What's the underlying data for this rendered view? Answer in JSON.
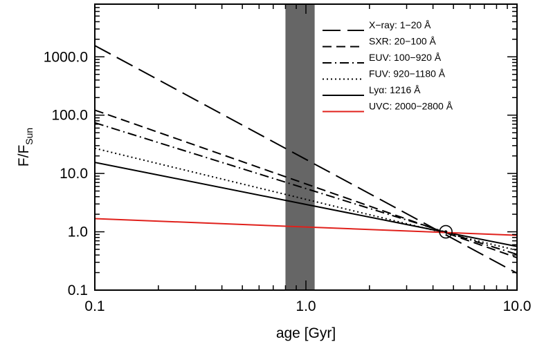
{
  "chart_data": {
    "type": "line",
    "xlabel": "age [Gyr]",
    "ylabel_main": "F/F",
    "ylabel_sub": "Sun",
    "x_scale": "log",
    "y_scale": "log",
    "xlim": [
      0.1,
      10.0
    ],
    "ylim": [
      0.1,
      8000
    ],
    "x_ticks": [
      {
        "value": 0.1,
        "label": "0.1"
      },
      {
        "value": 1.0,
        "label": "1.0"
      },
      {
        "value": 10.0,
        "label": "10.0"
      }
    ],
    "y_ticks": [
      {
        "value": 0.1,
        "label": "0.1"
      },
      {
        "value": 1.0,
        "label": "1.0"
      },
      {
        "value": 10.0,
        "label": "10.0"
      },
      {
        "value": 100.0,
        "label": "100.0"
      },
      {
        "value": 1000.0,
        "label": "1000.0"
      }
    ],
    "shaded_band": {
      "x": [
        0.8,
        1.1
      ],
      "color": "#666666"
    },
    "sun_marker": {
      "x": 4.6,
      "y": 1.0
    },
    "series": [
      {
        "name": "X−ray: 1−20 Å",
        "color": "#000000",
        "dash": "long-dash",
        "x": [
          0.1,
          10.0
        ],
        "y": [
          1560,
          0.195
        ]
      },
      {
        "name": "SXR: 20−100 Å",
        "color": "#000000",
        "dash": "dash",
        "x": [
          0.1,
          10.0
        ],
        "y": [
          122,
          0.36
        ]
      },
      {
        "name": "EUV: 100−920 Å",
        "color": "#000000",
        "dash": "dash-dot",
        "x": [
          0.1,
          10.0
        ],
        "y": [
          74,
          0.41
        ]
      },
      {
        "name": "FUV: 920−1180 Å",
        "color": "#000000",
        "dash": "dot",
        "x": [
          0.1,
          10.0
        ],
        "y": [
          27,
          0.48
        ]
      },
      {
        "name": "Lyα: 1216 Å",
        "color": "#000000",
        "dash": "solid",
        "x": [
          0.1,
          10.0
        ],
        "y": [
          15.5,
          0.56
        ]
      },
      {
        "name": "UVC: 2000−2800 Å",
        "color": "#e0201b",
        "dash": "solid",
        "x": [
          0.1,
          10.0
        ],
        "y": [
          1.68,
          0.87
        ]
      }
    ]
  }
}
